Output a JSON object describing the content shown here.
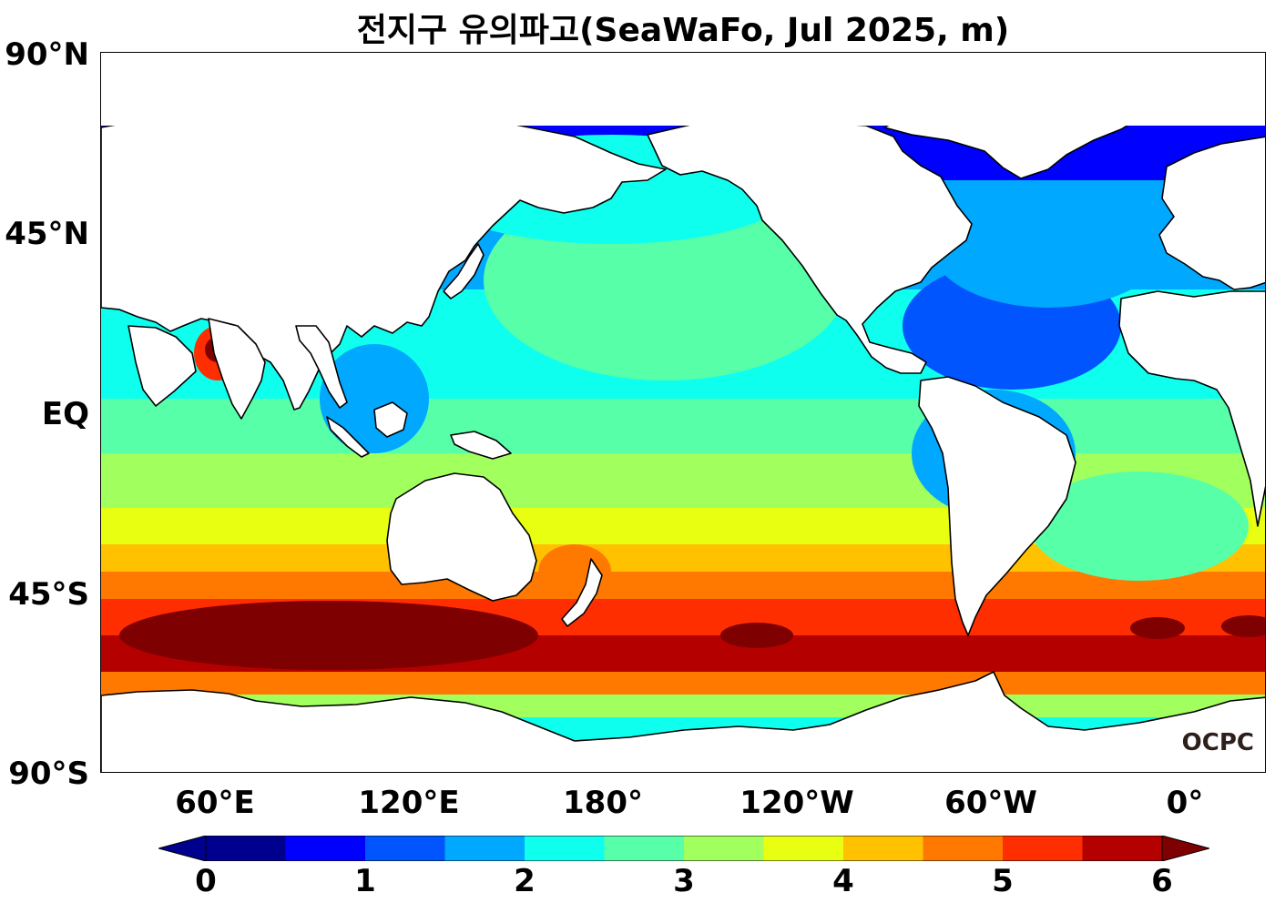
{
  "title": "전지구 유의파고(SeaWaFo, Jul 2025, m)",
  "logo": "OCPC",
  "lat_labels": [
    "90°N",
    "45°N",
    "EQ",
    "45°S",
    "90°S"
  ],
  "lon_labels": [
    "60°E",
    "120°E",
    "180°",
    "120°W",
    "60°W",
    "0°"
  ],
  "colorbar": {
    "tick_labels": [
      "0",
      "1",
      "2",
      "3",
      "4",
      "5",
      "6"
    ],
    "levels": [
      0,
      0.5,
      1,
      1.5,
      2,
      2.5,
      3,
      3.5,
      4,
      4.5,
      5,
      5.5,
      6
    ],
    "colors": [
      "#00008f",
      "#0000ff",
      "#0055ff",
      "#00a8ff",
      "#0fffee",
      "#56ffa8",
      "#a1ff5e",
      "#e8ff12",
      "#ffc100",
      "#ff7900",
      "#ff2e00",
      "#b50000",
      "#7f0000"
    ],
    "extend": "both"
  }
}
